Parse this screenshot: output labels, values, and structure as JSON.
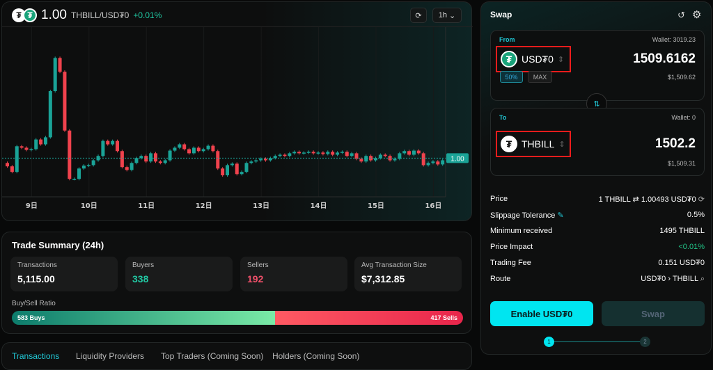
{
  "header": {
    "price": "1.00",
    "pair": "THBILL/USD₮0",
    "change": "+0.01%",
    "interval": "1h",
    "price_label": "1.00"
  },
  "colors": {
    "up": "#1aa397",
    "down": "#f0424d",
    "accent": "#00e5f0"
  },
  "chart_data": {
    "type": "candlestick",
    "price_line": 1.0,
    "ylim": [
      0.984,
      1.053
    ],
    "x_ticks": [
      {
        "index": 5,
        "label": "9日"
      },
      {
        "index": 17,
        "label": "10日"
      },
      {
        "index": 29,
        "label": "11日"
      },
      {
        "index": 41,
        "label": "12日"
      },
      {
        "index": 53,
        "label": "13日"
      },
      {
        "index": 65,
        "label": "14日"
      },
      {
        "index": 77,
        "label": "15日"
      },
      {
        "index": 89,
        "label": "16日"
      }
    ],
    "first_open": 0.998,
    "closes": [
      0.9966,
      0.9943,
      1.0049,
      1.0043,
      1.0034,
      1.0037,
      1.0077,
      1.0057,
      1.0086,
      1.0277,
      1.0414,
      1.0357,
      1.0114,
      0.9914,
      0.9914,
      0.9957,
      0.9969,
      0.9971,
      0.9991,
      1.0009,
      1.0071,
      1.0057,
      1.0071,
      1.0029,
      0.9963,
      0.9951,
      0.998,
      1.0,
      1.0009,
      0.9986,
      1.002,
      0.9986,
      0.998,
      0.9991,
      1.0031,
      1.0043,
      1.0057,
      1.0037,
      1.002,
      1.0043,
      1.0029,
      1.0037,
      1.0051,
      1.0029,
      0.9957,
      0.9929,
      0.9971,
      0.9977,
      0.9934,
      0.9943,
      0.998,
      0.9986,
      0.9991,
      0.9997,
      0.9991,
      1.0,
      1.0009,
      1.0014,
      1.0009,
      1.002,
      1.0026,
      1.002,
      1.0023,
      1.0026,
      1.002,
      1.0023,
      1.0017,
      1.0026,
      1.0014,
      1.0023,
      1.0026,
      1.0009,
      1.002,
      0.9997,
      0.9986,
      1.0009,
      0.9991,
      1.0,
      1.0014,
      1.0009,
      0.9991,
      0.9997,
      1.002,
      1.0029,
      1.0014,
      1.0031,
      1.002,
      0.9971,
      0.998,
      0.9986,
      0.9974,
      0.9991
    ]
  },
  "summary": {
    "title": "Trade Summary (24h)",
    "stats": [
      {
        "label": "Transactions",
        "value": "5,115.00"
      },
      {
        "label": "Buyers",
        "value": "338"
      },
      {
        "label": "Sellers",
        "value": "192"
      },
      {
        "label": "Avg Transaction Size",
        "value": "$7,312.85"
      }
    ],
    "ratio_label": "Buy/Sell Ratio",
    "buys": "583 Buys",
    "sells": "417 Sells",
    "buy_fraction": 0.583
  },
  "tabs": [
    "Transactions",
    "Liquidity Providers",
    "Top Traders (Coming Soon)",
    "Holders (Coming Soon)"
  ],
  "swap": {
    "title": "Swap",
    "from": {
      "label": "From",
      "wallet": "Wallet: 3019.23",
      "token": "USD₮0",
      "amount": "1509.6162",
      "usd": "$1,509.62",
      "pct": "50%",
      "max": "MAX"
    },
    "to": {
      "label": "To",
      "wallet": "Wallet: 0",
      "token": "THBILL",
      "amount": "1502.2",
      "usd": "$1,509.31"
    },
    "details": [
      {
        "label": "Price",
        "value": "1 THBILL ⇄ 1.00493 USD₮0"
      },
      {
        "label": "Slippage Tolerance",
        "value": "0.5%"
      },
      {
        "label": "Minimum received",
        "value": "1495 THBILL"
      },
      {
        "label": "Price Impact",
        "value": "<0.01%"
      },
      {
        "label": "Trading Fee",
        "value": "0.151 USD₮0"
      },
      {
        "label": "Route",
        "value": "USD₮0 › THBILL"
      }
    ],
    "enable": "Enable USD₮0",
    "swap_btn": "Swap",
    "steps": [
      "1",
      "2"
    ]
  }
}
